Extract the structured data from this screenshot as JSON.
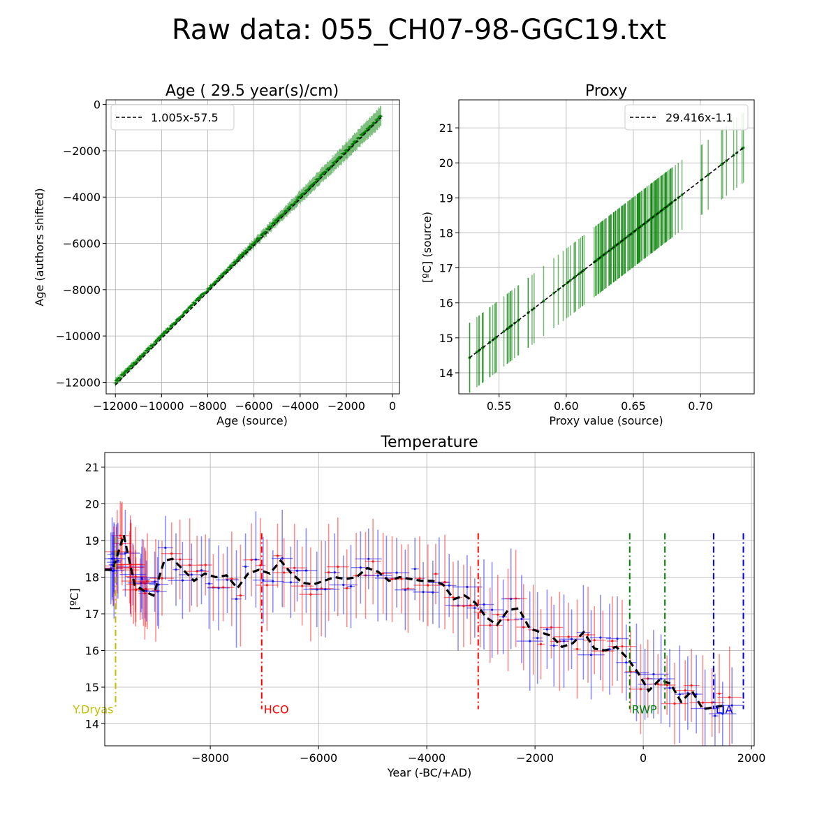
{
  "figure": {
    "suptitle": "Raw data: 055_CH07-98-GGC19.txt"
  },
  "chart_data": [
    {
      "type": "scatter",
      "title": "Age ( 29.5 year(s)/cm)",
      "xlabel": "Age (source)",
      "ylabel": "Age (authors shifted)",
      "xlim": [
        -12400,
        300
      ],
      "ylim": [
        -12500,
        200
      ],
      "xticks": [
        -12000,
        -10000,
        -8000,
        -6000,
        -4000,
        -2000,
        0
      ],
      "xtick_labels": [
        "−12000",
        "−10000",
        "−8000",
        "−6000",
        "−4000",
        "−2000",
        "0"
      ],
      "yticks": [
        -12000,
        -10000,
        -8000,
        -6000,
        -4000,
        -2000,
        0
      ],
      "ytick_labels": [
        "−12000",
        "−10000",
        "−8000",
        "−6000",
        "−4000",
        "−2000",
        "0"
      ],
      "grid": true,
      "legend": {
        "position": "top-left",
        "entries": [
          "1.005x-57.5"
        ]
      },
      "fit": {
        "slope": 1.005,
        "intercept": -57.5,
        "x_range": [
          -12000,
          -500
        ]
      },
      "points": {
        "x_range": [
          -12000,
          -500
        ],
        "count": 400,
        "y_error_at_start": 150,
        "y_error_at_knot": 60,
        "knot_x": -8600,
        "y_error_at_end": 430
      },
      "colors": {
        "points": "#008000",
        "fit": "#000000"
      }
    },
    {
      "type": "scatter",
      "title": "Proxy",
      "xlabel": "Proxy value (source)",
      "ylabel": "[ºC] (source)",
      "xlim": [
        0.52,
        0.74
      ],
      "ylim": [
        13.4,
        21.8
      ],
      "xticks": [
        0.55,
        0.6,
        0.65,
        0.7
      ],
      "xtick_labels": [
        "0.55",
        "0.60",
        "0.65",
        "0.70"
      ],
      "yticks": [
        14,
        15,
        16,
        17,
        18,
        19,
        20,
        21
      ],
      "ytick_labels": [
        "14",
        "15",
        "16",
        "17",
        "18",
        "19",
        "20",
        "21"
      ],
      "grid": true,
      "legend": {
        "position": "top-right",
        "entries": [
          "29.416x-1.1"
        ]
      },
      "fit": {
        "slope": 29.416,
        "intercept": -1.1,
        "x_range": [
          0.528,
          0.732
        ]
      },
      "points": {
        "x_range": [
          0.528,
          0.732
        ],
        "count": 170,
        "y_error": 1.0,
        "dense_x_range": [
          0.62,
          0.68
        ]
      },
      "colors": {
        "points": "#008000",
        "fit": "#000000"
      }
    },
    {
      "type": "line",
      "title": "Temperature",
      "xlabel": "Year (-BC/+AD)",
      "ylabel": "[ºC]",
      "xlim": [
        -9950,
        2050
      ],
      "ylim": [
        13.4,
        21.4
      ],
      "xticks": [
        -8000,
        -6000,
        -4000,
        -2000,
        0,
        2000
      ],
      "xtick_labels": [
        "−8000",
        "−6000",
        "−4000",
        "−2000",
        "0",
        "2000"
      ],
      "yticks": [
        14,
        15,
        16,
        17,
        18,
        19,
        20,
        21
      ],
      "ytick_labels": [
        "14",
        "15",
        "16",
        "17",
        "18",
        "19",
        "20",
        "21"
      ],
      "grid": true,
      "smoothed": {
        "x": [
          -9950,
          -9800,
          -9600,
          -9400,
          -9200,
          -9050,
          -8850,
          -8700,
          -8500,
          -8300,
          -8100,
          -7900,
          -7700,
          -7500,
          -7300,
          -7100,
          -6900,
          -6700,
          -6500,
          -6300,
          -6100,
          -5900,
          -5700,
          -5500,
          -5300,
          -5100,
          -4900,
          -4700,
          -4500,
          -4300,
          -4100,
          -3900,
          -3700,
          -3500,
          -3300,
          -3100,
          -2900,
          -2700,
          -2500,
          -2300,
          -2100,
          -1900,
          -1700,
          -1500,
          -1300,
          -1100,
          -900,
          -700,
          -500,
          -300,
          -100,
          100,
          300,
          500,
          700,
          900,
          1100,
          1300,
          1500
        ],
        "values": [
          18.2,
          18.2,
          19.15,
          17.8,
          17.6,
          17.5,
          18.45,
          18.5,
          18.2,
          17.9,
          18.1,
          18.0,
          18.05,
          17.7,
          18.1,
          18.2,
          18.1,
          18.45,
          18.1,
          17.85,
          17.8,
          17.9,
          18.0,
          17.95,
          18.0,
          18.25,
          18.15,
          17.9,
          18.0,
          17.95,
          17.9,
          17.9,
          17.8,
          17.4,
          17.5,
          17.3,
          16.9,
          16.7,
          17.1,
          17.15,
          16.6,
          16.5,
          16.4,
          16.1,
          16.2,
          16.5,
          16.05,
          16.0,
          16.1,
          15.8,
          15.4,
          14.9,
          15.2,
          15.1,
          14.6,
          14.9,
          14.4,
          14.45,
          14.5
        ]
      },
      "events": [
        {
          "label": "Y.Dryas",
          "color": "#bfbf00",
          "x": [
            -9750
          ],
          "y_range": [
            14.4,
            19.1
          ]
        },
        {
          "label": "HCO",
          "color": "#ff0000",
          "x": [
            -7050,
            -3050
          ],
          "y_range": [
            14.4,
            19.2
          ]
        },
        {
          "label": "RWP",
          "color": "#008000",
          "x": [
            -250,
            400
          ],
          "y_range": [
            14.4,
            19.2
          ]
        },
        {
          "label": "LIA",
          "color": "#0000ff",
          "x": [
            1300,
            1850
          ],
          "y_range": [
            14.4,
            19.2
          ]
        }
      ],
      "samples": {
        "count": 170,
        "colors": [
          "#ff0000",
          "#0000ff"
        ],
        "y_error": 1.0
      },
      "colors": {
        "smoothed": "#000000"
      }
    }
  ]
}
